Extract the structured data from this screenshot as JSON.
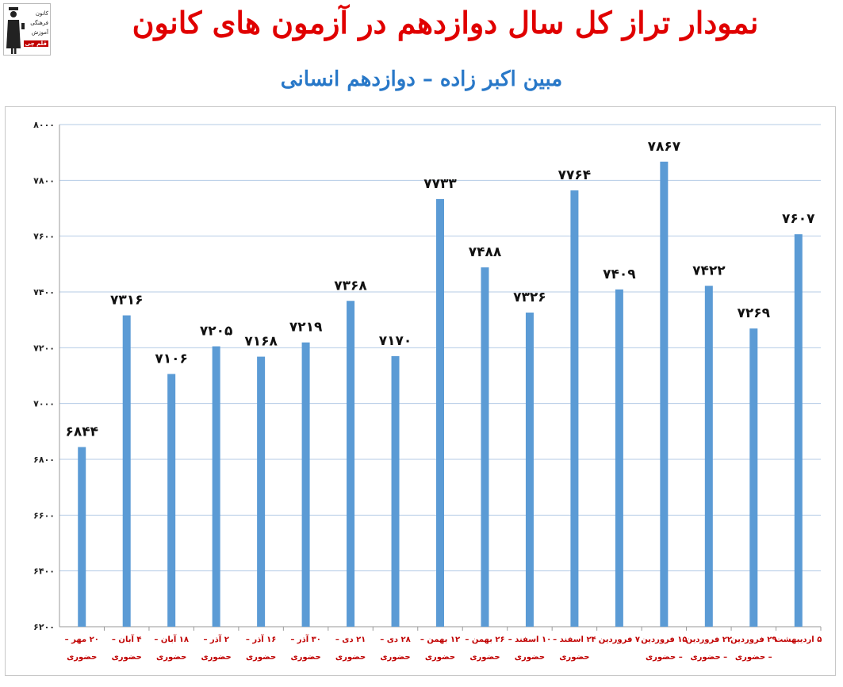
{
  "logo": {
    "lines": [
      "کانون",
      "فرهنگی",
      "آموزش"
    ],
    "badge": "قلم چی"
  },
  "header": {
    "title": "نمودار تراز کل سال دوازدهم در آزمون های کانون",
    "subtitle": "مبین اکبر زاده – دوازدهم انسانی"
  },
  "colors": {
    "bar": "#5b9bd5",
    "title": "#e00000",
    "subtitle": "#2878c8",
    "category_label": "#c00000",
    "gridline": "#b4cbe6"
  },
  "chart_data": {
    "type": "bar",
    "title": "نمودار تراز کل سال دوازدهم در آزمون های کانون",
    "subtitle": "مبین اکبر زاده – دوازدهم انسانی",
    "xlabel": "",
    "ylabel": "",
    "ylim": [
      6200,
      8000
    ],
    "yticks": [
      6200,
      6400,
      6600,
      6800,
      7000,
      7200,
      7400,
      7600,
      7800,
      8000
    ],
    "ytick_labels": [
      "۶۲۰۰",
      "۶۴۰۰",
      "۶۶۰۰",
      "۶۸۰۰",
      "۷۰۰۰",
      "۷۲۰۰",
      "۷۴۰۰",
      "۷۶۰۰",
      "۷۸۰۰",
      "۸۰۰۰"
    ],
    "grid": true,
    "legend": "none",
    "categories": [
      [
        "۲۰ مهر –",
        "حضوری"
      ],
      [
        "۴ آبان –",
        "حضوری"
      ],
      [
        "۱۸ آبان –",
        "حضوری"
      ],
      [
        "۲ آذر –",
        "حضوری"
      ],
      [
        "۱۶ آذر –",
        "حضوری"
      ],
      [
        "۳۰ آذر –",
        "حضوری"
      ],
      [
        "۲۱ دی –",
        "حضوری"
      ],
      [
        "۲۸ دی –",
        "حضوری"
      ],
      [
        "۱۲ بهمن –",
        "حضوری"
      ],
      [
        "۲۶ بهمن –",
        "حضوری"
      ],
      [
        "۱۰ اسفند –",
        "حضوری"
      ],
      [
        "۲۴ اسفند –",
        "حضوری"
      ],
      [
        "۷ فروردین",
        ""
      ],
      [
        "۱۵ فروردین",
        "– حضوری"
      ],
      [
        "۲۲ فروردین",
        "– حضوری"
      ],
      [
        "۲۹ فروردین",
        "– حضوری"
      ],
      [
        "۵ اردیبهشت",
        ""
      ]
    ],
    "values": [
      6844,
      7316,
      7106,
      7205,
      7168,
      7219,
      7368,
      7170,
      7733,
      7488,
      7326,
      7764,
      7409,
      7867,
      7422,
      7269,
      7607
    ],
    "value_labels": [
      "۶۸۴۴",
      "۷۳۱۶",
      "۷۱۰۶",
      "۷۲۰۵",
      "۷۱۶۸",
      "۷۲۱۹",
      "۷۳۶۸",
      "۷۱۷۰",
      "۷۷۳۳",
      "۷۴۸۸",
      "۷۳۲۶",
      "۷۷۶۴",
      "۷۴۰۹",
      "۷۸۶۷",
      "۷۴۲۲",
      "۷۲۶۹",
      "۷۶۰۷"
    ]
  }
}
